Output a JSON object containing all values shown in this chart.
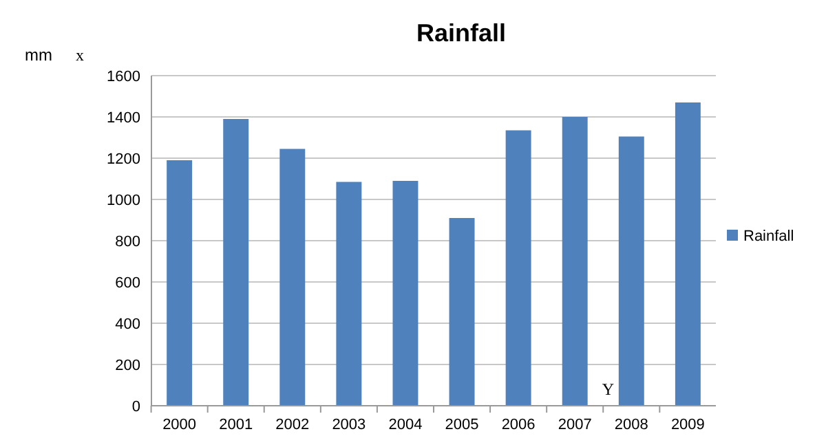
{
  "chart_data": {
    "type": "bar",
    "title": "Rainfall",
    "ylabel": "mm",
    "annotations": [
      "x",
      "Y"
    ],
    "categories": [
      "2000",
      "2001",
      "2002",
      "2003",
      "2004",
      "2005",
      "2006",
      "2007",
      "2008",
      "2009"
    ],
    "series": [
      {
        "name": "Rainfall",
        "color": "#4f81bd",
        "values": [
          1190,
          1390,
          1245,
          1085,
          1090,
          910,
          1335,
          1400,
          1305,
          1470
        ]
      }
    ],
    "ylim": [
      0,
      1600
    ],
    "yticks": [
      0,
      200,
      400,
      600,
      800,
      1000,
      1200,
      1400,
      1600
    ],
    "grid": "y",
    "legend": "right"
  }
}
